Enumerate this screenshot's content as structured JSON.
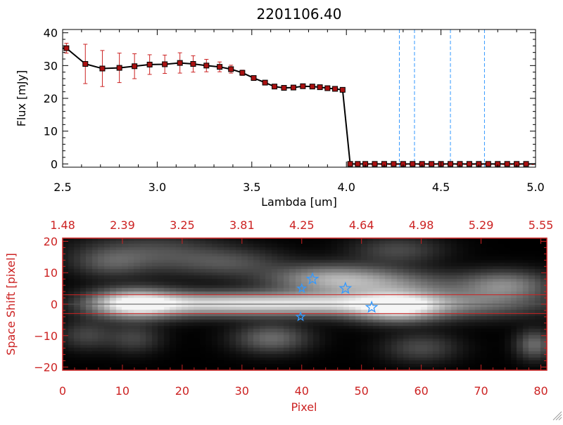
{
  "colors": {
    "red": "#cc2222",
    "blue": "#3399ff",
    "black": "#000000"
  },
  "chart_data": [
    {
      "type": "line",
      "title": "2201106.40",
      "xlabel": "Lambda [um]",
      "ylabel": "Flux [mJy]",
      "xlim": [
        2.5,
        5.0
      ],
      "ylim": [
        -1,
        41
      ],
      "x_ticks": [
        2.5,
        3.0,
        3.5,
        4.0,
        4.5,
        5.0
      ],
      "x_tick_labels": [
        "2.5",
        "3.0",
        "3.5",
        "4.0",
        "4.5",
        "5.0"
      ],
      "y_ticks": [
        0,
        10,
        20,
        30,
        40
      ],
      "y_tick_labels": [
        "0",
        "10",
        "20",
        "30",
        "40"
      ],
      "series": [
        {
          "x": [
            2.52,
            2.62,
            2.71,
            2.8,
            2.88,
            2.96,
            3.04,
            3.12,
            3.19,
            3.26,
            3.33,
            3.39,
            3.45,
            3.51,
            3.57,
            3.62,
            3.67,
            3.72,
            3.77,
            3.82,
            3.86,
            3.9,
            3.94,
            3.98,
            4.02,
            4.06,
            4.1,
            4.15,
            4.2,
            4.25,
            4.3,
            4.35,
            4.4,
            4.45,
            4.5,
            4.55,
            4.6,
            4.65,
            4.7,
            4.75,
            4.8,
            4.85,
            4.9,
            4.95
          ],
          "y": [
            35.3,
            30.5,
            29.1,
            29.3,
            29.8,
            30.3,
            30.4,
            30.8,
            30.5,
            30.0,
            29.6,
            28.9,
            27.8,
            26.2,
            24.8,
            23.6,
            23.2,
            23.3,
            23.7,
            23.6,
            23.4,
            23.1,
            22.9,
            22.6,
            0,
            0,
            0,
            0,
            0,
            0,
            0,
            0,
            0,
            0,
            0,
            0,
            0,
            0,
            0,
            0,
            0,
            0,
            0,
            0
          ],
          "yerr": [
            1.5,
            6.0,
            5.5,
            4.5,
            3.8,
            3.0,
            2.8,
            3.1,
            2.5,
            1.9,
            1.5,
            1.2,
            0.8,
            0.5,
            0.5,
            0.4,
            0.4,
            0.4,
            0.4,
            0.4,
            0.4,
            0.4,
            0.4,
            0.5,
            0,
            0,
            0,
            0,
            0,
            0,
            0,
            0,
            0,
            0,
            0,
            0,
            0,
            0,
            0,
            0,
            0,
            0,
            0,
            0
          ]
        }
      ],
      "vlines": [
        4.28,
        4.36,
        4.55,
        4.73
      ],
      "grid": false
    },
    {
      "type": "heatmap",
      "xlabel": "Pixel",
      "ylabel": "Space Shift [pixel]",
      "xlim": [
        0,
        81
      ],
      "ylim": [
        -21,
        21
      ],
      "x_ticks": [
        0,
        10,
        20,
        30,
        40,
        50,
        60,
        70,
        80
      ],
      "x_tick_labels": [
        "0",
        "10",
        "20",
        "30",
        "40",
        "50",
        "60",
        "70",
        "80"
      ],
      "y_ticks": [
        -20,
        -10,
        0,
        10,
        20
      ],
      "y_tick_labels": [
        "−20",
        "−10",
        "0",
        "10",
        "20"
      ],
      "top_axis_tick_labels": [
        "1.48",
        "2.39",
        "3.25",
        "3.81",
        "4.25",
        "4.64",
        "4.98",
        "5.29",
        "5.55"
      ],
      "hlines": [
        3,
        -3
      ],
      "sources": [
        {
          "x": 12,
          "y": 0,
          "amp": 1.0,
          "sx": 5,
          "sy": 3
        },
        {
          "x": 22,
          "y": 0,
          "amp": 0.55,
          "sx": 8,
          "sy": 2.5
        },
        {
          "x": 33,
          "y": 0,
          "amp": 0.5,
          "sx": 8,
          "sy": 2.5
        },
        {
          "x": 45,
          "y": 0,
          "amp": 0.6,
          "sx": 8,
          "sy": 2.5
        },
        {
          "x": 56,
          "y": -1,
          "amp": 0.85,
          "sx": 5,
          "sy": 3
        },
        {
          "x": 66,
          "y": 0,
          "amp": 0.4,
          "sx": 10,
          "sy": 3
        },
        {
          "x": 45,
          "y": 8,
          "amp": 0.55,
          "sx": 7,
          "sy": 3
        },
        {
          "x": 55,
          "y": 6,
          "amp": 0.35,
          "sx": 8,
          "sy": 3
        },
        {
          "x": 74,
          "y": 6,
          "amp": 0.45,
          "sx": 5,
          "sy": 3
        },
        {
          "x": 15,
          "y": 16,
          "amp": 0.25,
          "sx": 8,
          "sy": 4
        },
        {
          "x": 28,
          "y": 13,
          "amp": 0.22,
          "sx": 6,
          "sy": 3
        },
        {
          "x": 4,
          "y": -10,
          "amp": 0.2,
          "sx": 3,
          "sy": 3
        },
        {
          "x": 8,
          "y": 13,
          "amp": 0.2,
          "sx": 4,
          "sy": 3
        },
        {
          "x": 35,
          "y": -11,
          "amp": 0.35,
          "sx": 4,
          "sy": 3
        },
        {
          "x": 60,
          "y": -14,
          "amp": 0.22,
          "sx": 4,
          "sy": 3
        },
        {
          "x": 56,
          "y": 17,
          "amp": 0.22,
          "sx": 5,
          "sy": 3
        },
        {
          "x": 79,
          "y": -13,
          "amp": 0.35,
          "sx": 2,
          "sy": 3
        },
        {
          "x": 12,
          "y": -11,
          "amp": 0.2,
          "sx": 3,
          "sy": 3
        }
      ],
      "markers": [
        {
          "x": 40,
          "y": 5,
          "size": "small"
        },
        {
          "x": 41.8,
          "y": 8,
          "size": "large"
        },
        {
          "x": 47.3,
          "y": 5,
          "size": "large"
        },
        {
          "x": 51.7,
          "y": -1,
          "size": "large"
        },
        {
          "x": 39.8,
          "y": -4,
          "size": "small"
        }
      ]
    }
  ]
}
